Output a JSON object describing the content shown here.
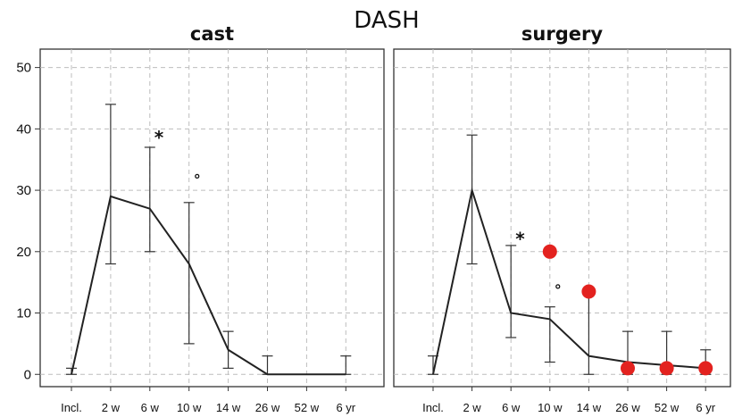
{
  "chart_data": {
    "type": "line",
    "title": "DASH",
    "categories": [
      "Incl.",
      "2 w",
      "6 w",
      "10 w",
      "14 w",
      "26 w",
      "52 w",
      "6 yr"
    ],
    "yticks": [
      0,
      10,
      20,
      30,
      40,
      50
    ],
    "ylim": [
      -2,
      53
    ],
    "grid": true,
    "panels": [
      {
        "title": "cast",
        "values": [
          0,
          29,
          27,
          18,
          4,
          0,
          0,
          0
        ],
        "err_low": [
          0,
          18,
          20,
          5,
          1,
          0,
          0,
          0
        ],
        "err_high": [
          1,
          44,
          37,
          28,
          7,
          3,
          null,
          3
        ],
        "annotations": [
          {
            "text": "*",
            "category": "6 w",
            "y": 39
          },
          {
            "text": "°",
            "category": "10 w",
            "y": 31.5
          }
        ],
        "highlight_points": []
      },
      {
        "title": "surgery",
        "values": [
          0,
          30,
          10,
          9,
          3,
          2,
          1.5,
          1
        ],
        "err_low": [
          0,
          18,
          6,
          2,
          0,
          0,
          0,
          0
        ],
        "err_high": [
          3,
          39,
          21,
          11,
          14,
          7,
          7,
          4
        ],
        "annotations": [
          {
            "text": "*",
            "category": "6 w",
            "y": 22.5
          },
          {
            "text": "°",
            "category": "10 w",
            "y": 13.5
          }
        ],
        "highlight_points": [
          {
            "category": "10 w",
            "y": 20
          },
          {
            "category": "14 w",
            "y": 13.5
          },
          {
            "category": "26 w",
            "y": 1
          },
          {
            "category": "52 w",
            "y": 1
          },
          {
            "category": "6 yr",
            "y": 1
          }
        ]
      }
    ],
    "highlight_color": "#e3221f",
    "line_color": "#222222"
  }
}
